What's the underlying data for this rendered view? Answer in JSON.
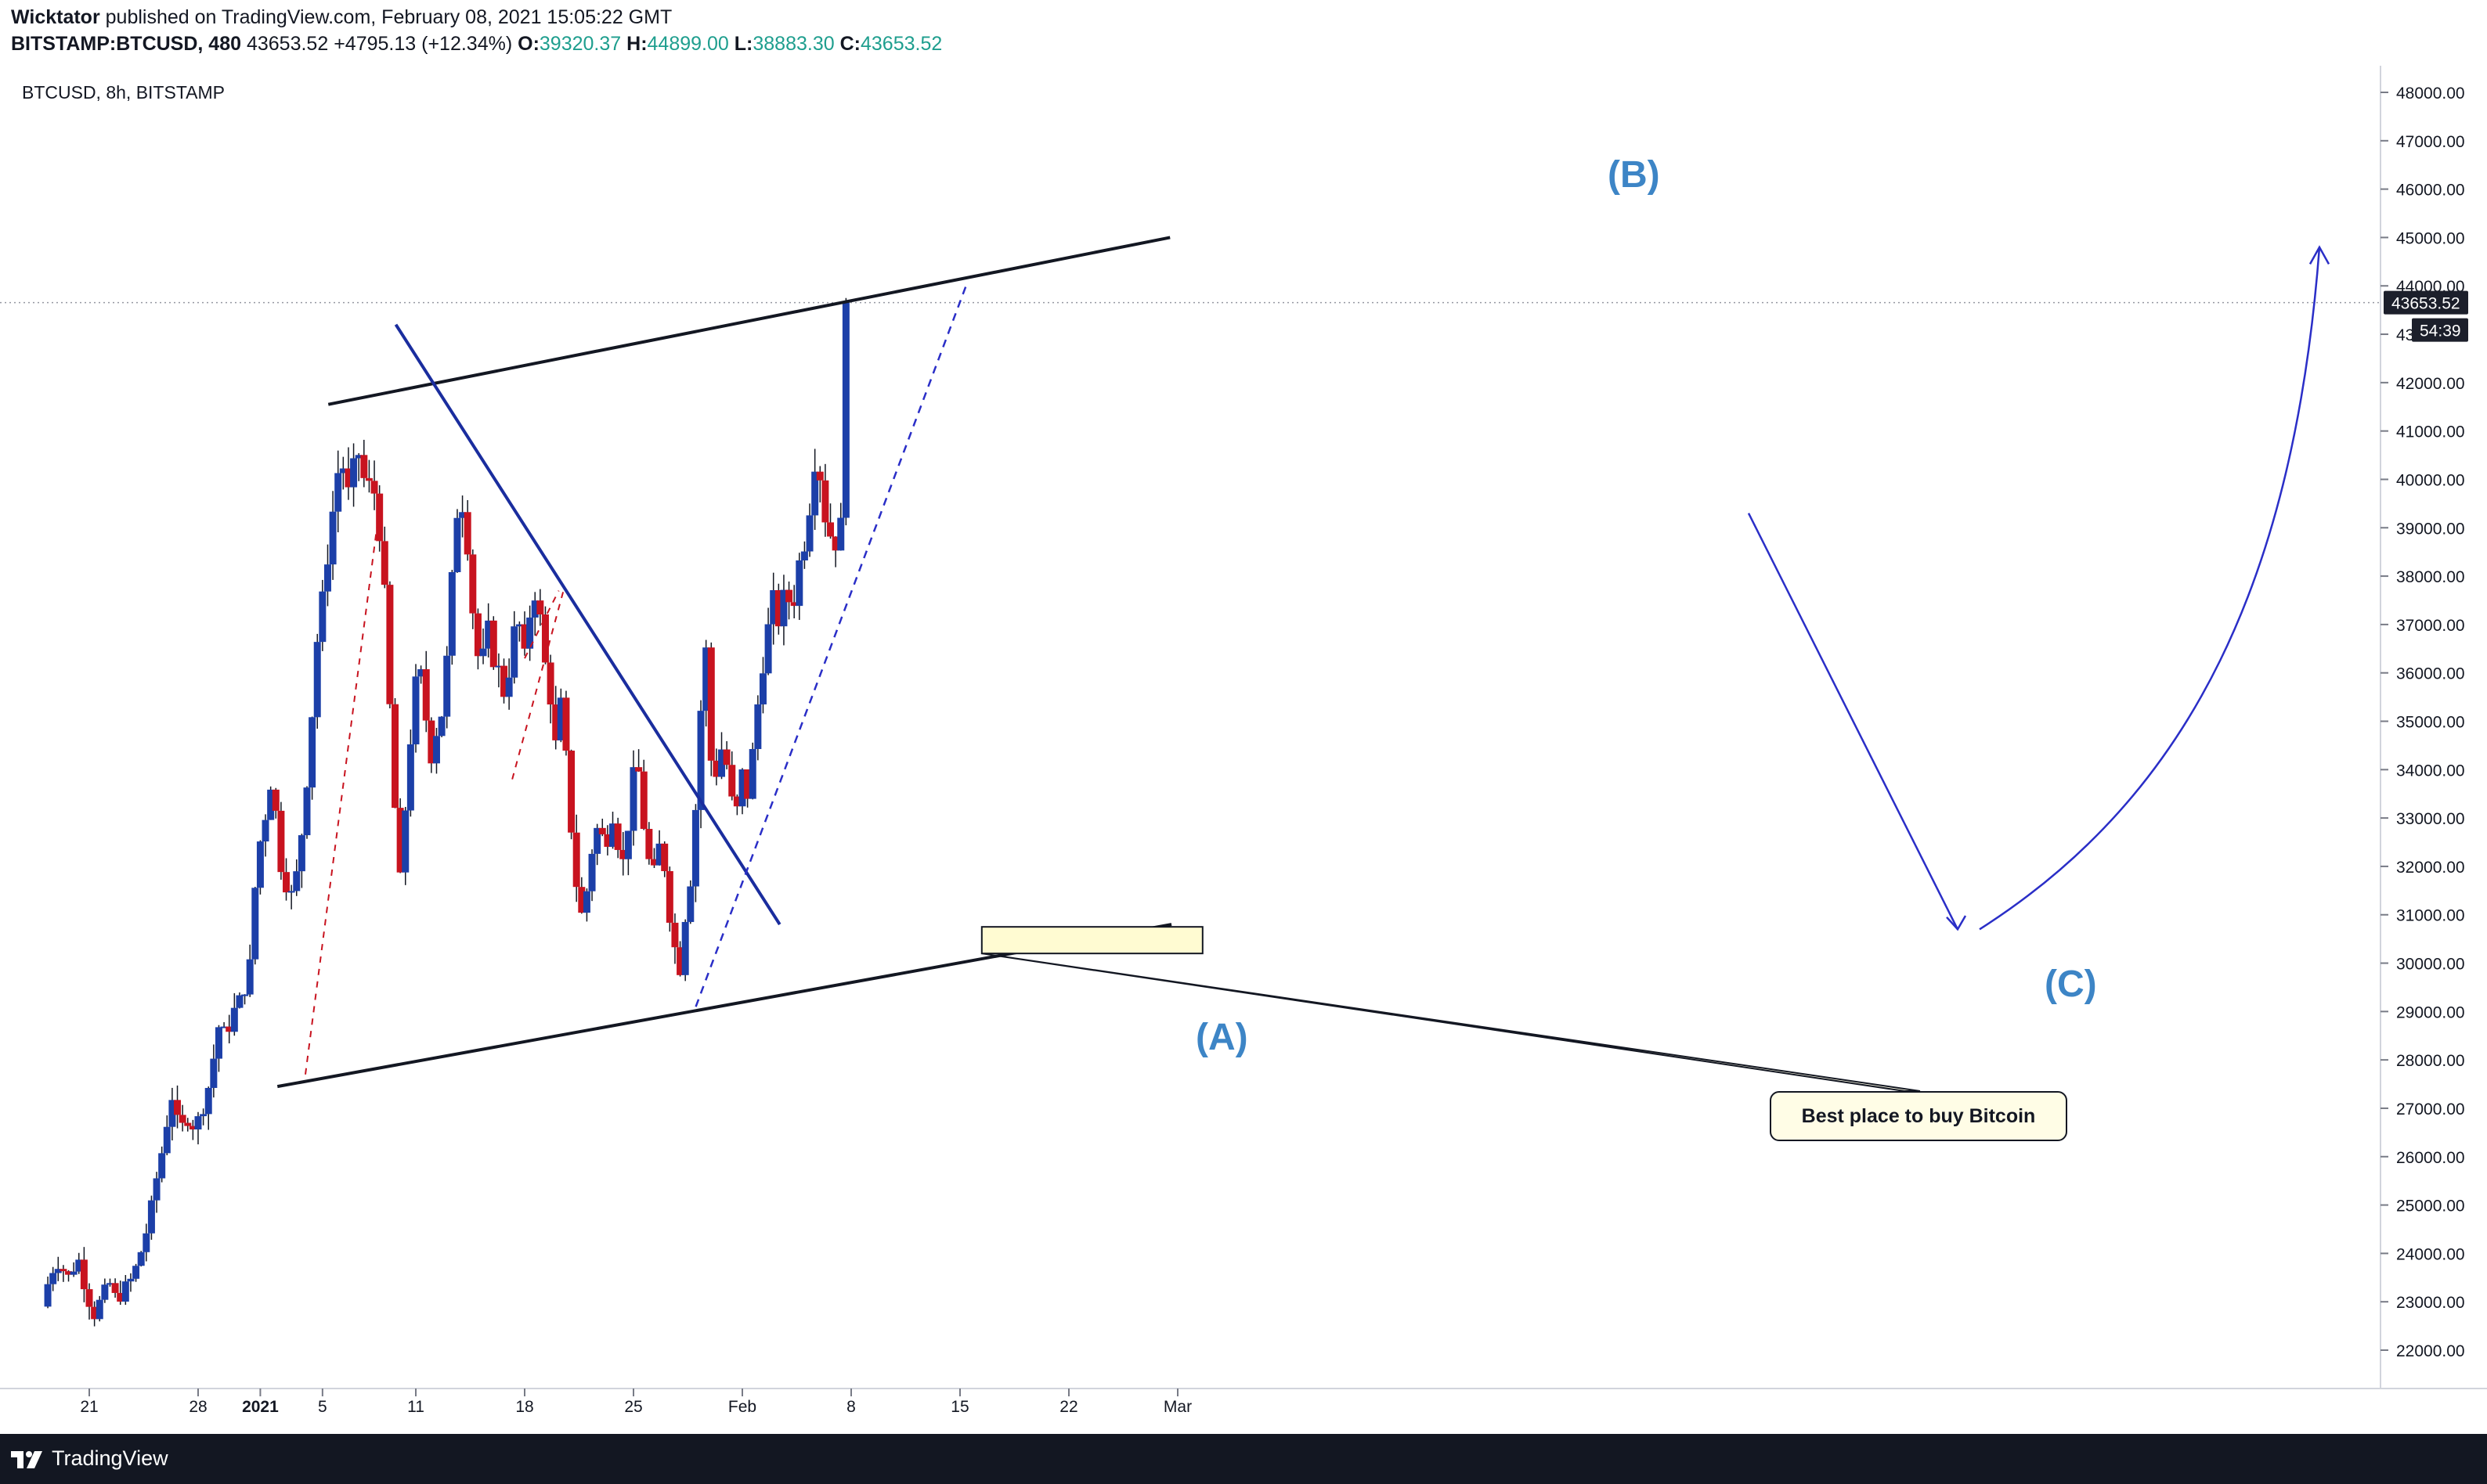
{
  "header": {
    "author": "Wicktator",
    "published": "published on TradingView.com, February 08, 2021 15:05:22 GMT",
    "symbol": "BITSTAMP:BTCUSD, 480",
    "last": "43653.52",
    "change": "+4795.13 (+12.34%)",
    "o_label": "O:",
    "o_value": "39320.37",
    "h_label": "H:",
    "h_value": "44899.00",
    "l_label": "L:",
    "l_value": "38883.30",
    "c_label": "C:",
    "c_value": "43653.52"
  },
  "chart_title": "BTCUSD, 8h, BITSTAMP",
  "price_tag": "43653.52",
  "countdown_tag": "54:39",
  "footer": {
    "brand": "TradingView"
  },
  "annotations": {
    "wave_a": "(A)",
    "wave_b": "(B)",
    "wave_c": "(C)",
    "callout": "Best place to buy Bitcoin"
  },
  "colors": {
    "up": "#1c3fa8",
    "down": "#c8131f",
    "trendline": "#131722",
    "descending_line": "#1a2d9e",
    "projection_arrow": "#2a2ec7",
    "wave_label": "#3d85c6",
    "buy_zone": "#fffbd2"
  },
  "chart_data": {
    "type": "candlestick",
    "symbol": "BTCUSD",
    "timeframe": "8h",
    "exchange": "BITSTAMP",
    "ylim": [
      21000,
      48700
    ],
    "yticks": [
      22000,
      23000,
      24000,
      25000,
      26000,
      27000,
      28000,
      29000,
      30000,
      31000,
      32000,
      33000,
      34000,
      35000,
      36000,
      37000,
      38000,
      39000,
      40000,
      41000,
      42000,
      43000,
      44000,
      45000,
      46000,
      47000,
      48000
    ],
    "ytick_labels": [
      "22000.00",
      "23000.00",
      "24000.00",
      "25000.00",
      "26000.00",
      "27000.00",
      "28000.00",
      "29000.00",
      "30000.00",
      "31000.00",
      "32000.00",
      "33000.00",
      "34000.00",
      "35000.00",
      "36000.00",
      "37000.00",
      "38000.00",
      "39000.00",
      "40000.00",
      "41000.00",
      "42000.00",
      "43000.00",
      "44000.00",
      "45000.00",
      "46000.00",
      "47000.00",
      "48000.00"
    ],
    "xticks": [
      {
        "label": "21",
        "day": 21
      },
      {
        "label": "28",
        "day": 28
      },
      {
        "label": "2021",
        "day": 32
      },
      {
        "label": "5",
        "day": 36
      },
      {
        "label": "11",
        "day": 42
      },
      {
        "label": "18",
        "day": 49
      },
      {
        "label": "25",
        "day": 56
      },
      {
        "label": "Feb",
        "day": 63
      },
      {
        "label": "8",
        "day": 70
      },
      {
        "label": "15",
        "day": 77
      },
      {
        "label": "22",
        "day": 84
      },
      {
        "label": "Mar",
        "day": 91
      }
    ],
    "day_basis": "days after 2020-11-30 (Dec 21 = 21, Jan 1 = 32, Feb 1 = 63)",
    "last_price": 43653.52,
    "closes_path": [
      [
        18.0,
        22900
      ],
      [
        18.5,
        23600
      ],
      [
        19.0,
        23800
      ],
      [
        19.7,
        23500
      ],
      [
        20.3,
        23900
      ],
      [
        20.8,
        23200
      ],
      [
        21.3,
        22700
      ],
      [
        21.8,
        23100
      ],
      [
        22.3,
        23400
      ],
      [
        22.8,
        23000
      ],
      [
        23.3,
        23300
      ],
      [
        23.8,
        23500
      ],
      [
        24.3,
        24000
      ],
      [
        24.8,
        24600
      ],
      [
        25.3,
        25500
      ],
      [
        25.8,
        26300
      ],
      [
        26.3,
        27300
      ],
      [
        26.8,
        26500
      ],
      [
        27.3,
        26800
      ],
      [
        27.8,
        26600
      ],
      [
        28.3,
        27000
      ],
      [
        28.8,
        27600
      ],
      [
        29.3,
        28700
      ],
      [
        29.8,
        28500
      ],
      [
        30.3,
        29000
      ],
      [
        30.8,
        29300
      ],
      [
        31.3,
        29800
      ],
      [
        31.8,
        32200
      ],
      [
        32.3,
        33000
      ],
      [
        32.8,
        34000
      ],
      [
        33.2,
        32200
      ],
      [
        33.6,
        31700
      ],
      [
        34.0,
        31400
      ],
      [
        34.4,
        31900
      ],
      [
        34.8,
        33100
      ],
      [
        35.2,
        34500
      ],
      [
        35.6,
        36500
      ],
      [
        36.0,
        37500
      ],
      [
        36.4,
        38600
      ],
      [
        36.8,
        39700
      ],
      [
        37.2,
        40600
      ],
      [
        37.6,
        39600
      ],
      [
        38.0,
        40200
      ],
      [
        38.4,
        40600
      ],
      [
        38.8,
        39700
      ],
      [
        39.2,
        40000
      ],
      [
        39.6,
        39200
      ],
      [
        40.0,
        37600
      ],
      [
        40.3,
        35500
      ],
      [
        40.6,
        33500
      ],
      [
        41.0,
        31700
      ],
      [
        41.4,
        33500
      ],
      [
        41.8,
        35200
      ],
      [
        42.2,
        36300
      ],
      [
        42.6,
        35200
      ],
      [
        43.0,
        34300
      ],
      [
        43.4,
        34900
      ],
      [
        43.8,
        35300
      ],
      [
        44.2,
        37200
      ],
      [
        44.6,
        39300
      ],
      [
        45.0,
        39500
      ],
      [
        45.4,
        38500
      ],
      [
        45.8,
        36700
      ],
      [
        46.2,
        36000
      ],
      [
        46.6,
        37000
      ],
      [
        47.0,
        36300
      ],
      [
        47.4,
        36000
      ],
      [
        47.8,
        35400
      ],
      [
        48.2,
        36700
      ],
      [
        48.6,
        37100
      ],
      [
        49.0,
        36300
      ],
      [
        49.4,
        37400
      ],
      [
        49.8,
        37800
      ],
      [
        50.2,
        36400
      ],
      [
        50.6,
        35700
      ],
      [
        51.0,
        34500
      ],
      [
        51.4,
        35500
      ],
      [
        51.8,
        33600
      ],
      [
        52.2,
        32000
      ],
      [
        52.6,
        30900
      ],
      [
        53.0,
        31500
      ],
      [
        53.4,
        32500
      ],
      [
        53.8,
        32900
      ],
      [
        54.2,
        32300
      ],
      [
        54.6,
        33200
      ],
      [
        55.0,
        32500
      ],
      [
        55.4,
        32000
      ],
      [
        55.8,
        33300
      ],
      [
        56.2,
        34400
      ],
      [
        56.6,
        33000
      ],
      [
        57.0,
        32100
      ],
      [
        57.4,
        31800
      ],
      [
        57.8,
        32700
      ],
      [
        58.2,
        31300
      ],
      [
        58.6,
        30400
      ],
      [
        59.0,
        29900
      ],
      [
        59.4,
        31200
      ],
      [
        59.8,
        32000
      ],
      [
        60.2,
        34400
      ],
      [
        60.6,
        36900
      ],
      [
        61.0,
        34200
      ],
      [
        61.4,
        33900
      ],
      [
        61.8,
        34700
      ],
      [
        62.2,
        33500
      ],
      [
        62.6,
        33000
      ],
      [
        63.0,
        33900
      ],
      [
        63.4,
        33400
      ],
      [
        63.8,
        34800
      ],
      [
        64.2,
        35900
      ],
      [
        64.6,
        36800
      ],
      [
        65.0,
        37500
      ],
      [
        65.4,
        37000
      ],
      [
        65.8,
        37800
      ],
      [
        66.2,
        37200
      ],
      [
        66.6,
        38200
      ],
      [
        67.0,
        38700
      ],
      [
        67.4,
        39600
      ],
      [
        67.8,
        40800
      ],
      [
        68.2,
        39400
      ],
      [
        68.6,
        38900
      ],
      [
        69.0,
        38700
      ],
      [
        69.4,
        39100
      ],
      [
        69.8,
        43653.52
      ]
    ]
  }
}
